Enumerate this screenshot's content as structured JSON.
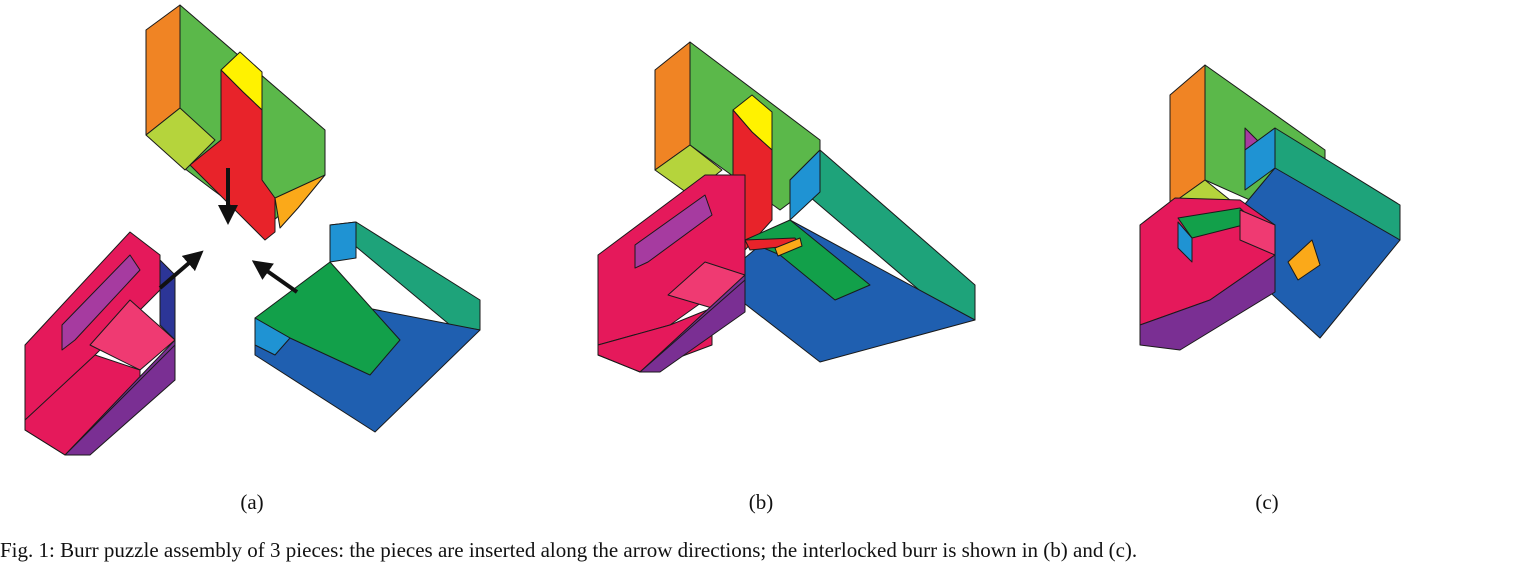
{
  "panels": [
    {
      "id": "a",
      "label": "(a)"
    },
    {
      "id": "b",
      "label": "(b)"
    },
    {
      "id": "c",
      "label": "(c)"
    }
  ],
  "caption": "Fig. 1: Burr puzzle assembly of 3 pieces: the pieces are inserted along the arrow directions; the interlocked burr is shown in (b) and (c).",
  "colors": {
    "green": "#5bb84a",
    "orange": "#f08424",
    "lime": "#b5d43c",
    "yellow": "#fff200",
    "red": "#e8232a",
    "amber": "#fba919",
    "crimson": "#e5195b",
    "pink": "#ef3a72",
    "purple": "#7a2f93",
    "magenta": "#a63ba0",
    "navy": "#2c3597",
    "blue": "#1f5fb0",
    "teal": "#1ea37a",
    "sky": "#1f93d3",
    "emerald": "#12a04a"
  },
  "icons": [
    "arrow-down-icon",
    "arrow-up-right-icon",
    "arrow-up-left-icon"
  ]
}
